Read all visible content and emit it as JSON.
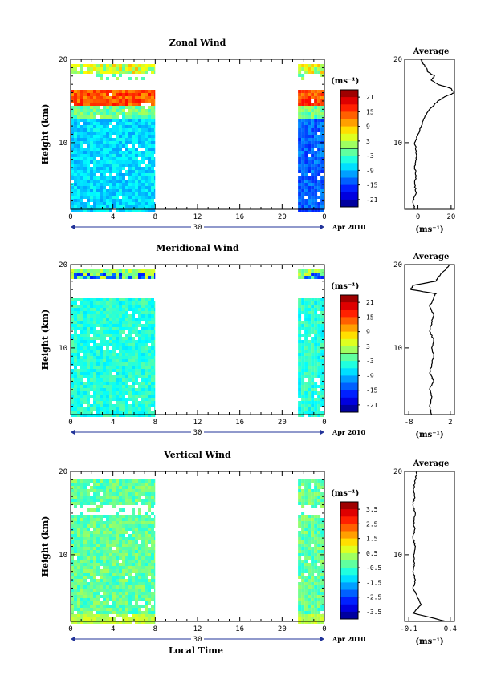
{
  "chart_data": [
    {
      "type": "heatmap",
      "title": "Zonal Wind",
      "ylabel": "Height (km)",
      "ylim": [
        2,
        20
      ],
      "xlim": [
        0,
        24
      ],
      "xticks": [
        "0",
        "4",
        "8",
        "12",
        "16",
        "20",
        "0"
      ],
      "yticks": [
        "10",
        "20"
      ],
      "day_label": "30",
      "month_label": "Apr 2010",
      "data_segments": [
        [
          0,
          8
        ],
        [
          21.5,
          24
        ]
      ],
      "colorbar": {
        "unit_label": "(ms⁻¹)",
        "ticks": [
          "21",
          "15",
          "9",
          "3",
          "-3",
          "-9",
          "-15",
          "-21"
        ],
        "range": [
          -24,
          24
        ],
        "zero_line": true
      },
      "profile": {
        "title": "Average",
        "xticks": [
          "0",
          "20"
        ],
        "xlim": [
          -8,
          22
        ],
        "xlabel": "(ms⁻¹)",
        "yticks": [
          "10",
          "20"
        ],
        "heights": [
          2,
          3,
          4,
          5,
          6,
          7,
          8,
          9,
          10,
          11,
          12,
          13,
          14,
          15,
          15.5,
          16,
          16.5,
          17,
          17.5,
          18,
          18.5,
          19,
          19.5,
          20
        ],
        "values": [
          -2,
          -3,
          -1,
          -2,
          -1,
          -2,
          -1,
          -1,
          -2,
          0,
          2,
          4,
          7,
          12,
          16,
          22,
          20,
          12,
          8,
          10,
          6,
          5,
          3,
          2
        ]
      }
    },
    {
      "type": "heatmap",
      "title": "Meridional Wind",
      "ylabel": "Height (km)",
      "ylim": [
        2,
        20
      ],
      "xlim": [
        0,
        24
      ],
      "xticks": [
        "0",
        "4",
        "8",
        "12",
        "16",
        "20",
        "0"
      ],
      "yticks": [
        "10",
        "20"
      ],
      "day_label": "30",
      "month_label": "Apr 2010",
      "data_segments": [
        [
          0,
          8
        ],
        [
          21.5,
          24
        ]
      ],
      "colorbar": {
        "unit_label": "(ms⁻¹)",
        "ticks": [
          "21",
          "15",
          "9",
          "3",
          "-3",
          "-9",
          "-15",
          "-21"
        ],
        "range": [
          -24,
          24
        ],
        "zero_line": true
      },
      "profile": {
        "title": "Average",
        "xticks": [
          "-8",
          "2"
        ],
        "xlim": [
          -9,
          3
        ],
        "xlabel": "(ms⁻¹)",
        "yticks": [
          "10",
          "20"
        ],
        "heights": [
          2,
          3,
          4,
          5,
          6,
          7,
          8,
          9,
          10,
          11,
          12,
          13,
          14,
          15,
          16,
          16.5,
          17,
          17.5,
          18,
          18.5,
          19,
          19.5,
          20
        ],
        "values": [
          -2.5,
          -3,
          -2.5,
          -3,
          -2,
          -3,
          -2.5,
          -2,
          -2.5,
          -2,
          -3,
          -2.5,
          -2,
          -3,
          -2,
          -1.5,
          -7.5,
          -7,
          -1.5,
          -1,
          0,
          1,
          2
        ]
      }
    },
    {
      "type": "heatmap",
      "title": "Vertical Wind",
      "ylabel": "Height (km)",
      "xlabel": "Local Time",
      "ylim": [
        2,
        20
      ],
      "xlim": [
        0,
        24
      ],
      "xticks": [
        "0",
        "4",
        "8",
        "12",
        "16",
        "20",
        "0"
      ],
      "yticks": [
        "10",
        "20"
      ],
      "day_label": "30",
      "month_label": "Apr 2010",
      "data_segments": [
        [
          0,
          8
        ],
        [
          21.5,
          24
        ]
      ],
      "colorbar": {
        "unit_label": "(ms⁻¹)",
        "ticks": [
          "3.5",
          "2.5",
          "1.5",
          "0.5",
          "-0.5",
          "-1.5",
          "-2.5",
          "-3.5"
        ],
        "range": [
          -4,
          4
        ],
        "zero_line": false
      },
      "profile": {
        "title": "Average",
        "xticks": [
          "-0.1",
          "0.4"
        ],
        "xlim": [
          -0.15,
          0.45
        ],
        "xlabel": "(ms⁻¹)",
        "yticks": [
          "10",
          "20"
        ],
        "heights": [
          2,
          3,
          4,
          5,
          6,
          7,
          8,
          9,
          10,
          11,
          12,
          13,
          14,
          15,
          16,
          17,
          18,
          19,
          20
        ],
        "values": [
          0.35,
          -0.05,
          0.05,
          0.0,
          -0.05,
          -0.02,
          -0.05,
          -0.03,
          -0.04,
          -0.02,
          -0.05,
          -0.03,
          -0.04,
          -0.02,
          -0.05,
          -0.03,
          -0.04,
          -0.02,
          0.0
        ]
      }
    }
  ]
}
